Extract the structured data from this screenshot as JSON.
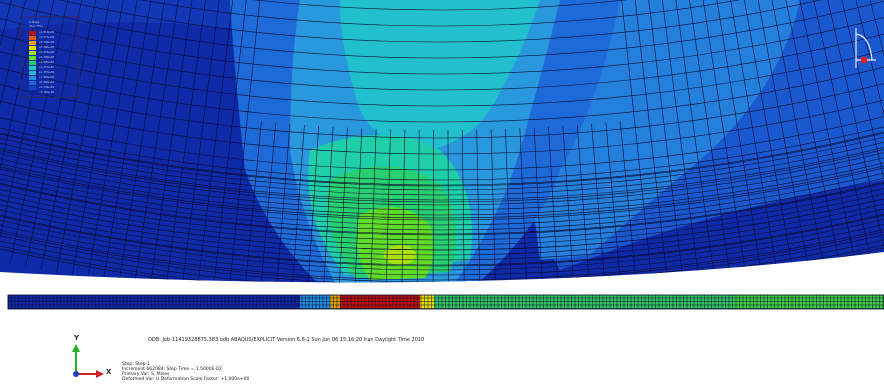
{
  "viewport": {
    "colors": {
      "background": "#ffffff",
      "mesh_line": "#0a0a30",
      "contour_levels": [
        "#0a1f9a",
        "#1440c0",
        "#1e66d8",
        "#2a8fe0",
        "#20b8d0",
        "#1fcfb0",
        "#22d070",
        "#5ce020",
        "#a8e010",
        "#e8e000",
        "#f0a000",
        "#e06000",
        "#c01000"
      ]
    }
  },
  "legend": {
    "title": "S, Mises",
    "subtitle": "(Avg: 75%)",
    "values": [
      "+4.011e+02",
      "+3.677e+02",
      "+3.342e+02",
      "+3.008e+02",
      "+2.674e+02",
      "+2.339e+02",
      "+2.005e+02",
      "+1.671e+02",
      "+1.337e+02",
      "+1.002e+02",
      "+6.682e+01",
      "+3.339e+01",
      "-3.791e-02"
    ]
  },
  "info": {
    "odb_line": "ODB: Job-11419328875.383.odb    ABAQUS/EXPLICIT Version 6.6-1    Sun Jun 06 15:16:20 Iran Daylight Time 2010",
    "step": "Step: Step-1",
    "increment": "Increment    662084: Step Time =    1.5000E-02",
    "primary_var": "Primary Var: S, Mises",
    "deformed_var": "Deformed Var: U   Deformation Scale Factor: +1.000e+00"
  },
  "axis": {
    "y_label": "Y",
    "x_label": "X"
  }
}
